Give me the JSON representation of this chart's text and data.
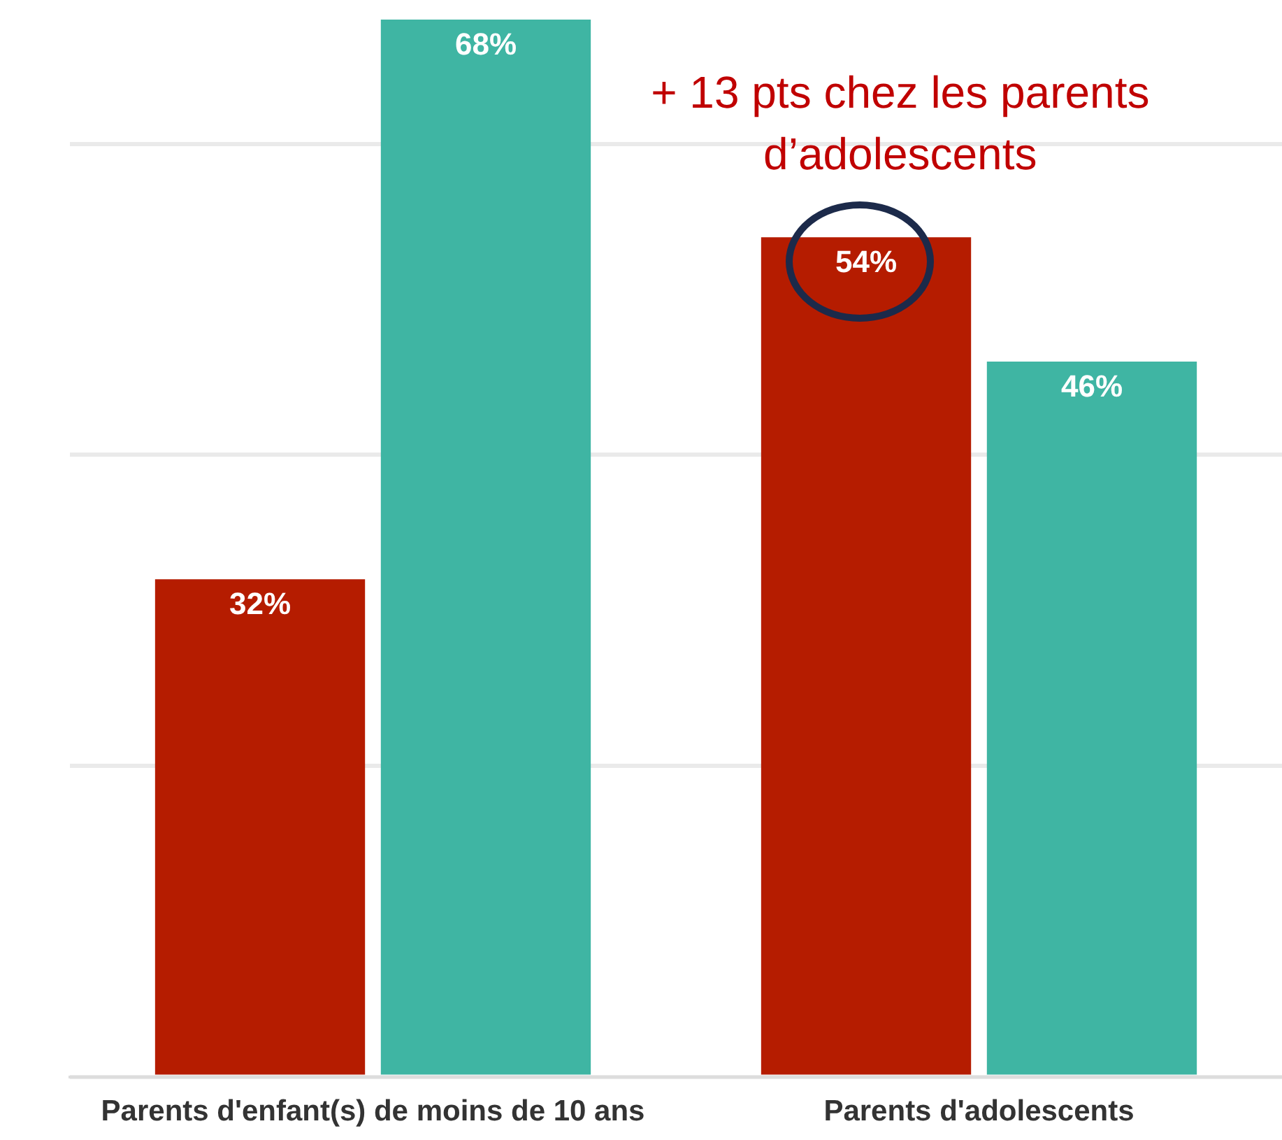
{
  "chart_data": {
    "type": "bar",
    "categories": [
      "Parents d'enfant(s) de moins de 10 ans",
      "Parents d'adolescents"
    ],
    "series": [
      {
        "color": "#b51c00",
        "values": [
          32,
          54
        ],
        "value_labels": [
          "32%",
          "54%"
        ]
      },
      {
        "color": "#3fb5a3",
        "values": [
          68,
          46
        ],
        "value_labels": [
          "68%",
          "46%"
        ]
      }
    ],
    "ylim": [
      0,
      68
    ],
    "yticks": [
      {
        "value": 0,
        "label": null
      },
      {
        "value": 20,
        "label": null
      },
      {
        "value": 40,
        "label": null
      },
      {
        "value": 60,
        "label": null
      }
    ],
    "tick_labels": "x",
    "grid": "y",
    "legend": false,
    "annotations": [
      "+ 13 pts chez les parents d’adolescents"
    ]
  }
}
